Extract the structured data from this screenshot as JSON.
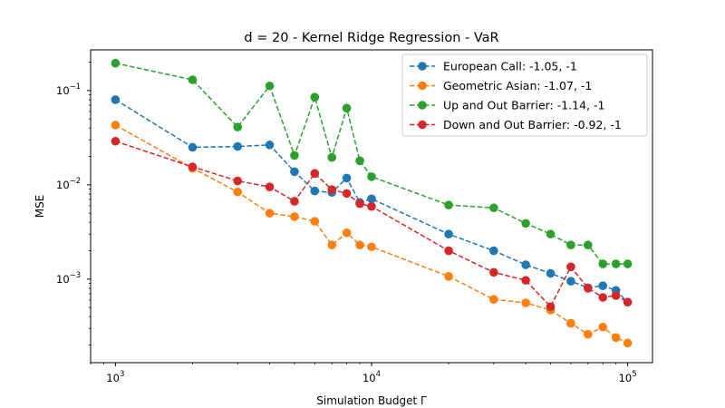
{
  "chart_data": {
    "type": "line",
    "title": "d = 20 - Kernel Ridge Regression - VaR",
    "xlabel": "Simulation Budget Γ",
    "ylabel": "MSE",
    "xscale": "log",
    "yscale": "log",
    "xlim": [
      800,
      125000
    ],
    "ylim": [
      0.00013,
      0.27
    ],
    "x": [
      1000,
      2000,
      3000,
      4000,
      5000,
      6000,
      7000,
      8000,
      9000,
      10000,
      20000,
      30000,
      40000,
      50000,
      60000,
      70000,
      80000,
      90000,
      100000
    ],
    "x_ticks": [
      {
        "base": "10",
        "exp": "3"
      },
      {
        "base": "10",
        "exp": "4"
      },
      {
        "base": "10",
        "exp": "5"
      }
    ],
    "y_ticks": [
      {
        "base": "10",
        "exp": "−3"
      },
      {
        "base": "10",
        "exp": "−2"
      },
      {
        "base": "10",
        "exp": "−1"
      }
    ],
    "legend_position": "top-right",
    "grid": false,
    "series": [
      {
        "name": "European Call: -1.05, -1",
        "color": "#1f77b4",
        "values": [
          0.08,
          0.025,
          0.0255,
          0.0265,
          0.0138,
          0.0086,
          0.0083,
          0.0118,
          0.0065,
          0.0071,
          0.003,
          0.002,
          0.00142,
          0.00115,
          0.00095,
          0.00081,
          0.00085,
          0.00076,
          0.00057
        ]
      },
      {
        "name": "Geometric Asian: -1.07, -1",
        "color": "#ff7f0e",
        "values": [
          0.043,
          0.015,
          0.0084,
          0.005,
          0.0046,
          0.0041,
          0.0023,
          0.0031,
          0.0023,
          0.0022,
          0.00107,
          0.00061,
          0.00056,
          0.00047,
          0.00034,
          0.00026,
          0.00031,
          0.00024,
          0.00021
        ]
      },
      {
        "name": "Up and Out Barrier: -1.14, -1",
        "color": "#2ca02c",
        "values": [
          0.195,
          0.13,
          0.041,
          0.112,
          0.0205,
          0.085,
          0.0195,
          0.065,
          0.018,
          0.0122,
          0.0061,
          0.0057,
          0.0039,
          0.003,
          0.0023,
          0.0023,
          0.00145,
          0.00145,
          0.00145
        ]
      },
      {
        "name": "Down and Out Barrier: -0.92, -1",
        "color": "#d62728",
        "values": [
          0.029,
          0.0155,
          0.011,
          0.0095,
          0.0067,
          0.0132,
          0.0089,
          0.0081,
          0.0063,
          0.0059,
          0.002,
          0.00118,
          0.00097,
          0.00051,
          0.00135,
          0.0008,
          0.00064,
          0.00067,
          0.00057
        ]
      }
    ]
  }
}
